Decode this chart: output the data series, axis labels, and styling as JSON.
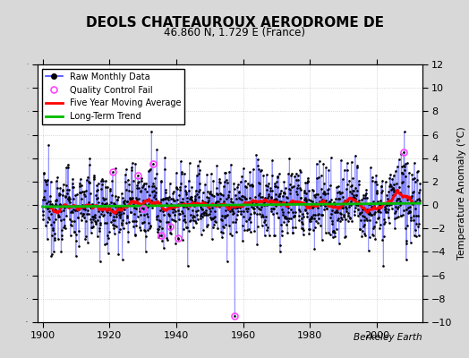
{
  "title": "DEOLS CHATEAUROUX AERODROME DE",
  "subtitle": "46.860 N, 1.729 E (France)",
  "ylabel": "Temperature Anomaly (°C)",
  "credit": "Berkeley Earth",
  "xlim": [
    1898.5,
    2013.5
  ],
  "ylim": [
    -10,
    12
  ],
  "yticks": [
    -10,
    -8,
    -6,
    -4,
    -2,
    0,
    2,
    4,
    6,
    8,
    10,
    12
  ],
  "xticks": [
    1900,
    1920,
    1940,
    1960,
    1980,
    2000
  ],
  "background_color": "#d8d8d8",
  "plot_background": "#ffffff",
  "raw_line_color": "#4444ff",
  "raw_dot_color": "#000000",
  "qc_fail_color": "#ff44ff",
  "moving_avg_color": "#ff0000",
  "trend_color": "#00bb00",
  "seed": 12345,
  "n_months": 1356,
  "start_year": 1900.0
}
